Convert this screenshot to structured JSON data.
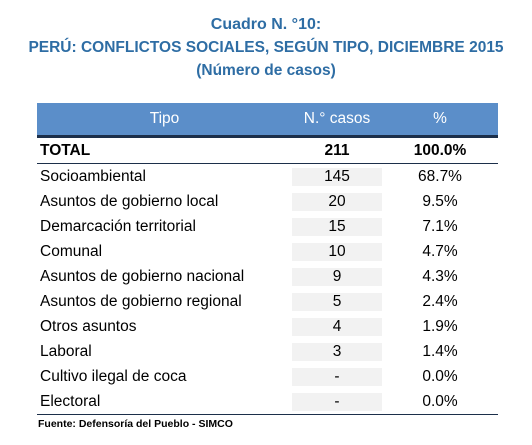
{
  "caption": {
    "line1": "Cuadro N. °10:",
    "line2": "PERÚ: CONFLICTOS SOCIALES, SEGÚN TIPO, DICIEMBRE 2015",
    "line3": "(Número de casos)"
  },
  "table": {
    "headers": [
      "Tipo",
      "N.° casos",
      "%"
    ],
    "total": {
      "tipo": "TOTAL",
      "casos": "211",
      "pct": "100.0%"
    },
    "rows": [
      {
        "tipo": "Socioambiental",
        "casos": "145",
        "pct": "68.7%"
      },
      {
        "tipo": "Asuntos de gobierno local",
        "casos": "20",
        "pct": "9.5%"
      },
      {
        "tipo": "Demarcación territorial",
        "casos": "15",
        "pct": "7.1%"
      },
      {
        "tipo": "Comunal",
        "casos": "10",
        "pct": "4.7%"
      },
      {
        "tipo": "Asuntos de gobierno nacional",
        "casos": "9",
        "pct": "4.3%"
      },
      {
        "tipo": "Asuntos de gobierno regional",
        "casos": "5",
        "pct": "2.4%"
      },
      {
        "tipo": "Otros asuntos",
        "casos": "4",
        "pct": "1.9%"
      },
      {
        "tipo": "Laboral",
        "casos": "3",
        "pct": "1.4%"
      },
      {
        "tipo": "Cultivo ilegal de coca",
        "casos": "-",
        "pct": "0.0%"
      },
      {
        "tipo": "Electoral",
        "casos": "-",
        "pct": "0.0%"
      }
    ]
  },
  "source": "Fuente: Defensoría del Pueblo - SIMCO",
  "colors": {
    "caption": "#2e6da4",
    "header_bg": "#5b8ec9",
    "rule": "#1c2f4a",
    "shaded_column_bg": "#f2f2f2"
  }
}
